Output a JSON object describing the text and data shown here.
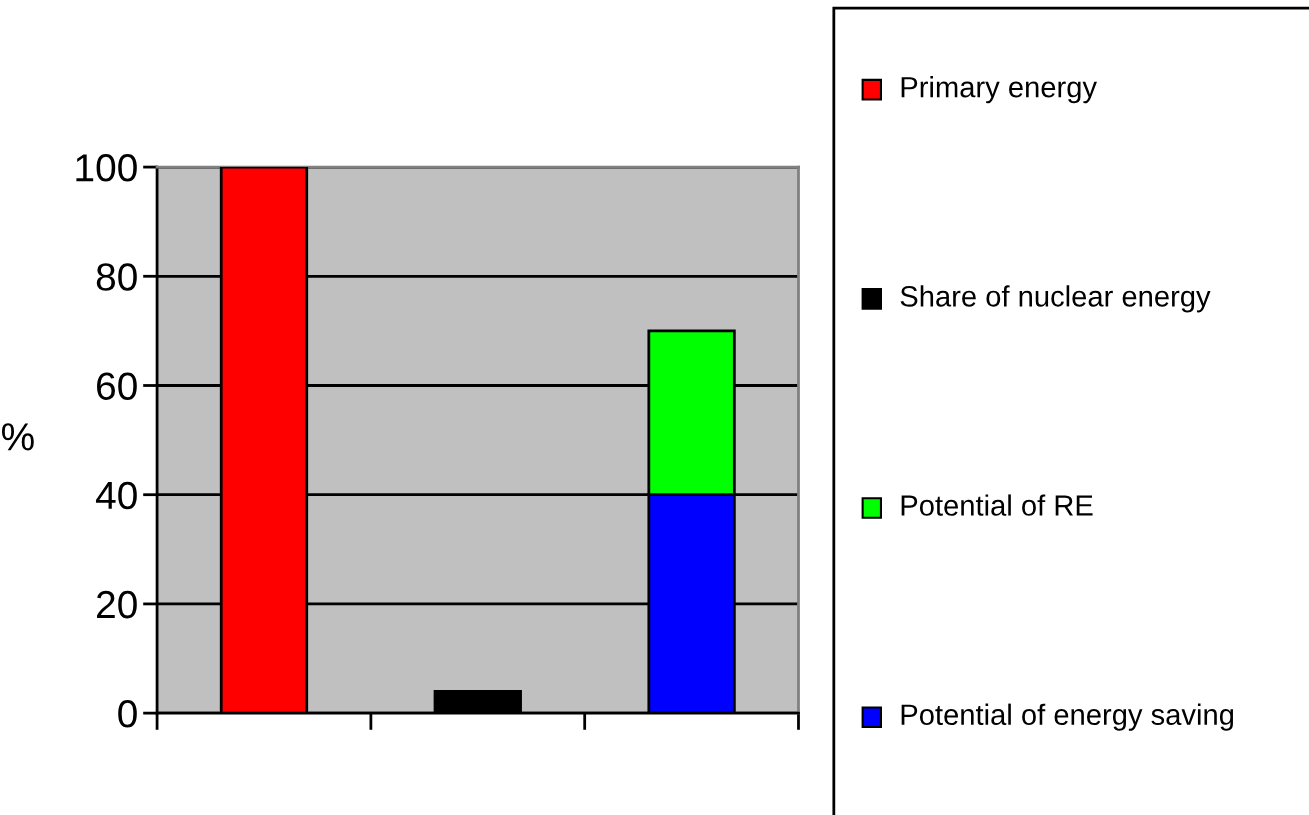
{
  "chart_data": {
    "type": "bar",
    "ylabel": "%",
    "categories": [
      null,
      null,
      null
    ],
    "stacked": true,
    "series": [
      {
        "name": "Potential of energy saving",
        "color": "#0000ff",
        "values": [
          null,
          null,
          40
        ]
      },
      {
        "name": "Potential of RE",
        "color": "#00ff00",
        "values": [
          null,
          null,
          30
        ]
      },
      {
        "name": "Share of nuclear energy",
        "color": "#000000",
        "values": [
          null,
          4,
          null
        ]
      },
      {
        "name": "Primary energy",
        "color": "#ff0000",
        "values": [
          100,
          null,
          null
        ]
      }
    ],
    "ylim": [
      0,
      100
    ],
    "yticks": [
      0,
      20,
      40,
      60,
      80,
      100
    ],
    "grid": "y",
    "legend": "right"
  }
}
